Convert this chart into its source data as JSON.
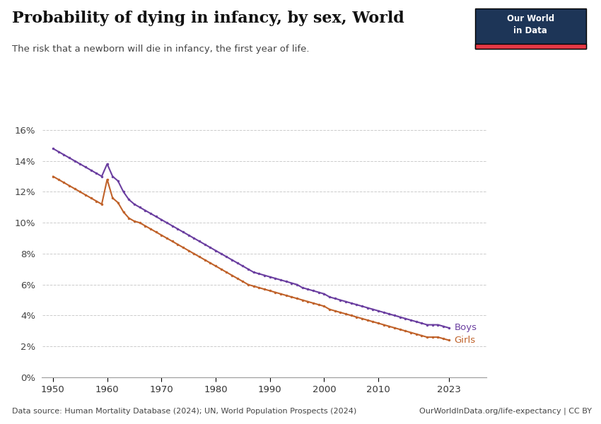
{
  "title": "Probability of dying in infancy, by sex, World",
  "subtitle": "The risk that a newborn will die in infancy, the first year of life.",
  "datasource": "Data source: Human Mortality Database (2024); UN, World Population Prospects (2024)",
  "url": "OurWorldInData.org/life-expectancy | CC BY",
  "boys_x": [
    1950,
    1951,
    1952,
    1953,
    1954,
    1955,
    1956,
    1957,
    1958,
    1959,
    1960,
    1961,
    1962,
    1963,
    1964,
    1965,
    1966,
    1967,
    1968,
    1969,
    1970,
    1971,
    1972,
    1973,
    1974,
    1975,
    1976,
    1977,
    1978,
    1979,
    1980,
    1981,
    1982,
    1983,
    1984,
    1985,
    1986,
    1987,
    1988,
    1989,
    1990,
    1991,
    1992,
    1993,
    1994,
    1995,
    1996,
    1997,
    1998,
    1999,
    2000,
    2001,
    2002,
    2003,
    2004,
    2005,
    2006,
    2007,
    2008,
    2009,
    2010,
    2011,
    2012,
    2013,
    2014,
    2015,
    2016,
    2017,
    2018,
    2019,
    2020,
    2021,
    2022,
    2023
  ],
  "boys_y": [
    0.148,
    0.146,
    0.144,
    0.142,
    0.14,
    0.138,
    0.136,
    0.134,
    0.132,
    0.13,
    0.138,
    0.13,
    0.127,
    0.12,
    0.115,
    0.112,
    0.11,
    0.108,
    0.106,
    0.104,
    0.102,
    0.1,
    0.098,
    0.096,
    0.094,
    0.092,
    0.09,
    0.088,
    0.086,
    0.084,
    0.082,
    0.08,
    0.078,
    0.076,
    0.074,
    0.072,
    0.07,
    0.068,
    0.067,
    0.066,
    0.065,
    0.064,
    0.063,
    0.062,
    0.061,
    0.06,
    0.058,
    0.057,
    0.056,
    0.055,
    0.054,
    0.052,
    0.051,
    0.05,
    0.049,
    0.048,
    0.047,
    0.046,
    0.045,
    0.044,
    0.043,
    0.042,
    0.041,
    0.04,
    0.039,
    0.038,
    0.037,
    0.036,
    0.035,
    0.034,
    0.034,
    0.034,
    0.033,
    0.032
  ],
  "girls_x": [
    1950,
    1951,
    1952,
    1953,
    1954,
    1955,
    1956,
    1957,
    1958,
    1959,
    1960,
    1961,
    1962,
    1963,
    1964,
    1965,
    1966,
    1967,
    1968,
    1969,
    1970,
    1971,
    1972,
    1973,
    1974,
    1975,
    1976,
    1977,
    1978,
    1979,
    1980,
    1981,
    1982,
    1983,
    1984,
    1985,
    1986,
    1987,
    1988,
    1989,
    1990,
    1991,
    1992,
    1993,
    1994,
    1995,
    1996,
    1997,
    1998,
    1999,
    2000,
    2001,
    2002,
    2003,
    2004,
    2005,
    2006,
    2007,
    2008,
    2009,
    2010,
    2011,
    2012,
    2013,
    2014,
    2015,
    2016,
    2017,
    2018,
    2019,
    2020,
    2021,
    2022,
    2023
  ],
  "girls_y": [
    0.13,
    0.128,
    0.126,
    0.124,
    0.122,
    0.12,
    0.118,
    0.116,
    0.114,
    0.112,
    0.128,
    0.116,
    0.113,
    0.107,
    0.103,
    0.101,
    0.1,
    0.098,
    0.096,
    0.094,
    0.092,
    0.09,
    0.088,
    0.086,
    0.084,
    0.082,
    0.08,
    0.078,
    0.076,
    0.074,
    0.072,
    0.07,
    0.068,
    0.066,
    0.064,
    0.062,
    0.06,
    0.059,
    0.058,
    0.057,
    0.056,
    0.055,
    0.054,
    0.053,
    0.052,
    0.051,
    0.05,
    0.049,
    0.048,
    0.047,
    0.046,
    0.044,
    0.043,
    0.042,
    0.041,
    0.04,
    0.039,
    0.038,
    0.037,
    0.036,
    0.035,
    0.034,
    0.033,
    0.032,
    0.031,
    0.03,
    0.029,
    0.028,
    0.027,
    0.026,
    0.026,
    0.026,
    0.025,
    0.024
  ],
  "boys_color": "#6b3fa0",
  "girls_color": "#c0622a",
  "background_color": "#ffffff",
  "grid_color": "#cccccc",
  "ylim": [
    0,
    0.17
  ],
  "yticks": [
    0,
    0.02,
    0.04,
    0.06,
    0.08,
    0.1,
    0.12,
    0.14,
    0.16
  ],
  "xticks": [
    1950,
    1960,
    1970,
    1980,
    1990,
    2000,
    2010,
    2023
  ],
  "owid_box_color": "#1d3557",
  "owid_box_red": "#e63946"
}
